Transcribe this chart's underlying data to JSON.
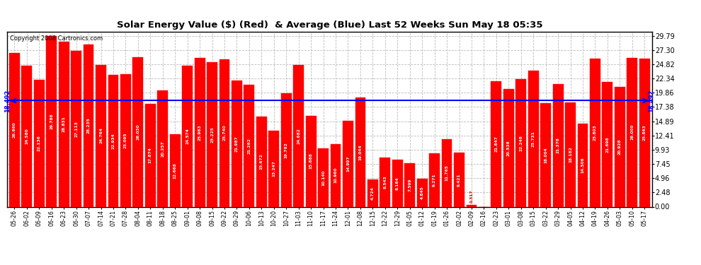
{
  "title": "Solar Energy Value ($) (Red)  & Average (Blue) Last 52 Weeks Sun May 18 05:35",
  "copyright": "Copyright 2008 Cartronics.com",
  "average": 18.492,
  "bar_color": "#ff0000",
  "avg_line_color": "#0000ff",
  "background_color": "#ffffff",
  "plot_bg_color": "#ffffff",
  "grid_color": "#bbbbbb",
  "categories": [
    "05-26",
    "06-02",
    "06-09",
    "06-16",
    "06-23",
    "06-30",
    "07-07",
    "07-14",
    "07-21",
    "07-28",
    "08-04",
    "08-11",
    "08-18",
    "08-25",
    "09-01",
    "09-08",
    "09-15",
    "09-22",
    "09-29",
    "10-06",
    "10-13",
    "10-20",
    "10-27",
    "11-03",
    "11-10",
    "11-17",
    "11-24",
    "12-01",
    "12-08",
    "12-15",
    "12-22",
    "12-29",
    "01-05",
    "01-12",
    "01-19",
    "01-26",
    "02-02",
    "02-09",
    "02-16",
    "02-23",
    "03-01",
    "03-08",
    "03-15",
    "03-22",
    "03-29",
    "04-05",
    "04-12",
    "04-19",
    "04-26",
    "05-03",
    "05-10",
    "05-17"
  ],
  "values": [
    26.86,
    24.58,
    22.136,
    29.786,
    28.831,
    27.113,
    28.235,
    24.764,
    22.934,
    23.095,
    26.03,
    17.874,
    20.257,
    12.668,
    24.574,
    25.963,
    25.225,
    25.74,
    21.987,
    21.262,
    15.672,
    13.247,
    19.782,
    24.682,
    15.888,
    10.14,
    10.96,
    14.997,
    19.044,
    4.724,
    8.543,
    8.164,
    7.599,
    4.845,
    9.271,
    11.765,
    9.421,
    0.317,
    0.0,
    21.847,
    20.538,
    22.248,
    23.731,
    18.004,
    21.378,
    18.182,
    14.506,
    25.803,
    21.698,
    20.928,
    26.0,
    25.863
  ],
  "yticks": [
    0.0,
    2.48,
    4.96,
    7.45,
    9.93,
    12.41,
    14.89,
    17.38,
    19.86,
    22.34,
    24.82,
    27.3,
    29.79
  ],
  "ylim": [
    0,
    30.5
  ],
  "figsize": [
    9.9,
    3.75
  ],
  "dpi": 100
}
